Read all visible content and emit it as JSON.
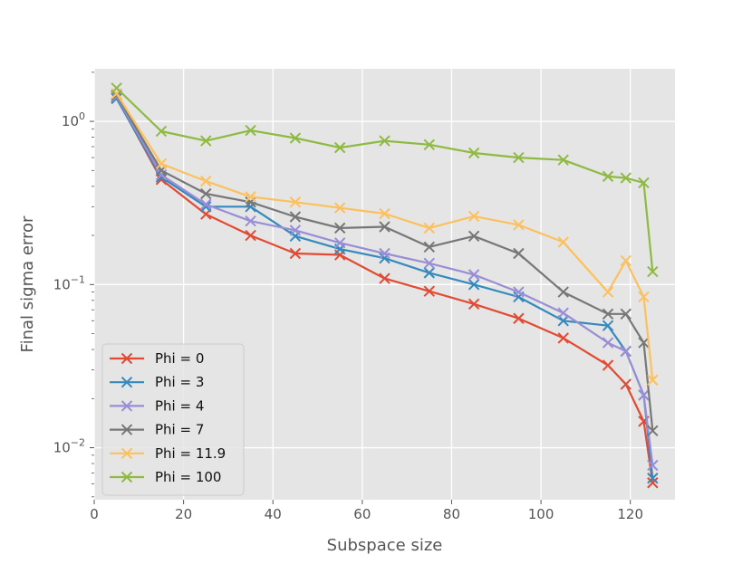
{
  "chart_data": {
    "type": "line",
    "xlabel": "Subspace size",
    "ylabel": "Final sigma error",
    "yscale": "log",
    "xlim": [
      0,
      130
    ],
    "ylim": [
      0.0048,
      2.1
    ],
    "x_ticks": [
      0,
      20,
      40,
      60,
      80,
      100,
      120
    ],
    "y_ticks": [
      0.01,
      0.1,
      1.0
    ],
    "x_tick_labels": [
      "0",
      "20",
      "40",
      "60",
      "80",
      "100",
      "120"
    ],
    "y_tick_labels": [
      {
        "base": "10",
        "exp": "−2"
      },
      {
        "base": "10",
        "exp": "−1"
      },
      {
        "base": "10",
        "exp": "0"
      }
    ],
    "grid": true,
    "marker": "x",
    "legend_position": "lower-left",
    "series": [
      {
        "name": "Phi = 0",
        "color": "#E24A33",
        "x": [
          5,
          15,
          25,
          35,
          45,
          55,
          65,
          75,
          85,
          95,
          105,
          115,
          119,
          123,
          125
        ],
        "y": [
          1.4,
          0.44,
          0.27,
          0.2,
          0.155,
          0.152,
          0.109,
          0.091,
          0.076,
          0.062,
          0.047,
          0.032,
          0.0245,
          0.0145,
          0.0061
        ]
      },
      {
        "name": "Phi = 3",
        "color": "#348ABD",
        "x": [
          5,
          15,
          25,
          35,
          45,
          55,
          65,
          75,
          85,
          95,
          105,
          115,
          119,
          123,
          125
        ],
        "y": [
          1.38,
          0.455,
          0.3,
          0.3,
          0.198,
          0.165,
          0.145,
          0.118,
          0.1,
          0.084,
          0.06,
          0.056,
          0.039,
          0.021,
          0.0065
        ]
      },
      {
        "name": "Phi = 4",
        "color": "#988ED5",
        "x": [
          5,
          15,
          25,
          35,
          45,
          55,
          65,
          75,
          85,
          95,
          105,
          115,
          119,
          123,
          125
        ],
        "y": [
          1.42,
          0.47,
          0.31,
          0.245,
          0.215,
          0.18,
          0.155,
          0.135,
          0.115,
          0.09,
          0.067,
          0.044,
          0.039,
          0.021,
          0.0078
        ]
      },
      {
        "name": "Phi = 7",
        "color": "#777777",
        "x": [
          5,
          15,
          25,
          35,
          45,
          55,
          65,
          75,
          85,
          95,
          105,
          115,
          119,
          123,
          125
        ],
        "y": [
          1.45,
          0.5,
          0.36,
          0.32,
          0.26,
          0.222,
          0.226,
          0.17,
          0.198,
          0.155,
          0.09,
          0.066,
          0.066,
          0.044,
          0.0127
        ]
      },
      {
        "name": "Phi = 11.9",
        "color": "#FBC15E",
        "x": [
          5,
          15,
          25,
          35,
          45,
          55,
          65,
          75,
          85,
          95,
          105,
          115,
          119,
          123,
          125
        ],
        "y": [
          1.48,
          0.55,
          0.43,
          0.345,
          0.32,
          0.295,
          0.272,
          0.222,
          0.262,
          0.232,
          0.182,
          0.09,
          0.14,
          0.084,
          0.026
        ]
      },
      {
        "name": "Phi = 100",
        "color": "#8EBA42",
        "x": [
          5,
          15,
          25,
          35,
          45,
          55,
          65,
          75,
          85,
          95,
          105,
          115,
          119,
          123,
          125
        ],
        "y": [
          1.6,
          0.87,
          0.76,
          0.88,
          0.79,
          0.69,
          0.76,
          0.72,
          0.64,
          0.6,
          0.58,
          0.46,
          0.45,
          0.42,
          0.12
        ]
      }
    ]
  }
}
